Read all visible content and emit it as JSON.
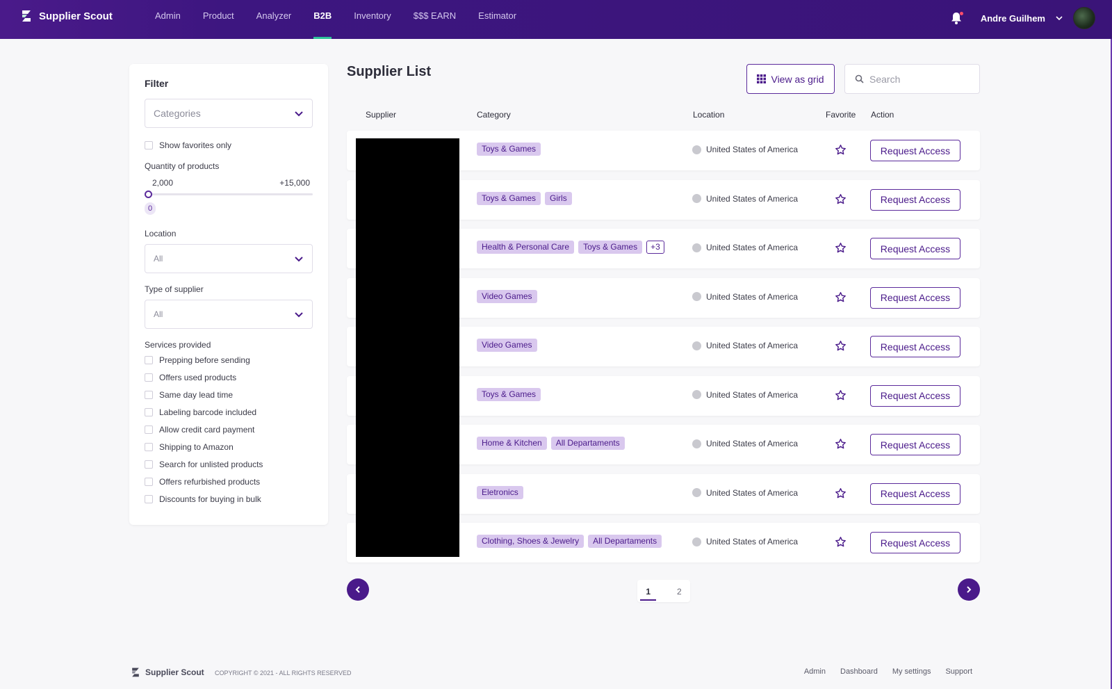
{
  "app": {
    "name": "Supplier Scout"
  },
  "nav": {
    "items": [
      {
        "label": "Admin",
        "active": false
      },
      {
        "label": "Product",
        "active": false
      },
      {
        "label": "Analyzer",
        "active": false
      },
      {
        "label": "B2B",
        "active": true
      },
      {
        "label": "Inventory",
        "active": false
      },
      {
        "label": "$$$ EARN",
        "active": false
      },
      {
        "label": "Estimator",
        "active": false
      }
    ],
    "user_name": "Andre Guilhem"
  },
  "filter": {
    "title": "Filter",
    "categories_placeholder": "Categories",
    "show_favorites_label": "Show favorites only",
    "quantity_label": "Quantity of products",
    "quantity_min_label": "2,000",
    "quantity_max_label": "+15,000",
    "quantity_value": "0",
    "location_label": "Location",
    "location_value": "All",
    "supplier_type_label": "Type of supplier",
    "supplier_type_value": "All",
    "services_label": "Services provided",
    "services": [
      "Prepping before sending",
      "Offers used products",
      "Same day lead time",
      "Labeling barcode included",
      "Allow credit card payment",
      "Shipping to Amazon",
      "Search for unlisted products",
      "Offers refurbished products",
      "Discounts for buying in bulk"
    ]
  },
  "main": {
    "title": "Supplier List",
    "view_grid_label": "View as grid",
    "search_placeholder": "Search",
    "columns": [
      "Supplier",
      "Category",
      "Location",
      "Favorite",
      "Action"
    ],
    "rows": [
      {
        "categories": [
          "Toys & Games"
        ],
        "more": "",
        "location": "United States of America",
        "action": "Request Access"
      },
      {
        "categories": [
          "Toys & Games",
          "Girls"
        ],
        "more": "",
        "location": "United States of America",
        "action": "Request Access"
      },
      {
        "categories": [
          "Health & Personal Care",
          "Toys & Games"
        ],
        "more": "+3",
        "location": "United States of America",
        "action": "Request Access"
      },
      {
        "categories": [
          "Video Games"
        ],
        "more": "",
        "location": "United States of America",
        "action": "Request Access"
      },
      {
        "categories": [
          "Video Games"
        ],
        "more": "",
        "location": "United States of America",
        "action": "Request Access"
      },
      {
        "categories": [
          "Toys & Games"
        ],
        "more": "",
        "location": "United States of America",
        "action": "Request Access"
      },
      {
        "categories": [
          "Home & Kitchen",
          "All Departaments"
        ],
        "more": "",
        "location": "United States of America",
        "action": "Request Access"
      },
      {
        "categories": [
          "Eletronics"
        ],
        "more": "",
        "location": "United States of America",
        "action": "Request Access"
      },
      {
        "categories": [
          "Clothing, Shoes & Jewelry",
          "All Departaments"
        ],
        "more": "",
        "location": "United States of America",
        "action": "Request Access"
      }
    ],
    "pagination": {
      "pages": [
        "1",
        "2"
      ],
      "current": "1"
    }
  },
  "footer": {
    "brand": "Supplier Scout",
    "copyright": "COPYRIGHT © 2021 - ALL RIGHTS RESERVED",
    "links": [
      "Admin",
      "Dashboard",
      "My settings",
      "Support"
    ]
  },
  "colors": {
    "primary": "#4a1a8a",
    "tag_bg": "#d9c8ee",
    "active_underline": "#2fc39a"
  }
}
